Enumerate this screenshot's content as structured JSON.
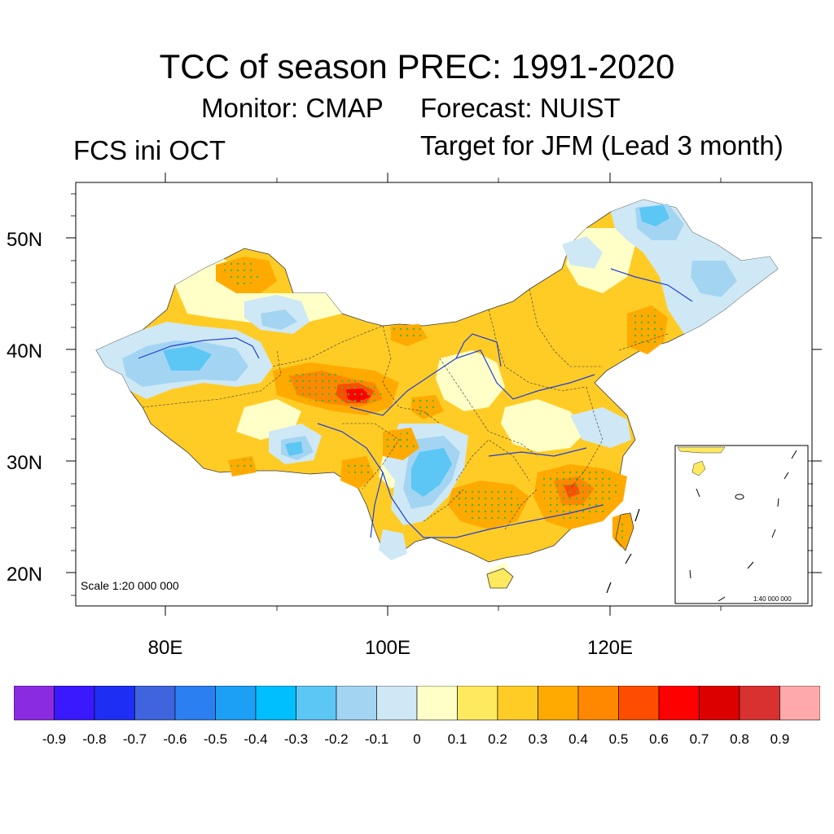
{
  "title": "TCC of season PREC: 1991-2020",
  "monitor_label": "Monitor: CMAP",
  "forecast_label": "Forecast: NUIST",
  "left_label": "FCS ini OCT",
  "right_label": "Target for JFM (Lead 3 month)",
  "latitude_labels": [
    "50N",
    "40N",
    "30N",
    "20N"
  ],
  "longitude_labels": [
    "80E",
    "100E",
    "120E"
  ],
  "scale_main": "Scale 1:20 000 000",
  "scale_inset": "1:40 000 000",
  "colorbar": {
    "colors": [
      "#8a2be2",
      "#3a19ff",
      "#1f2ef5",
      "#3f64dd",
      "#2c7ff0",
      "#1ba0f5",
      "#00bfff",
      "#5cc6f5",
      "#a3d5f2",
      "#cfe8f6",
      "#ffffc8",
      "#ffe95e",
      "#ffcc26",
      "#ffaa00",
      "#ff8800",
      "#ff4d00",
      "#ff0000",
      "#dc0000",
      "#d93030",
      "#ffaaaa"
    ],
    "labels": [
      "-0.9",
      "-0.8",
      "-0.7",
      "-0.6",
      "-0.5",
      "-0.4",
      "-0.3",
      "-0.2",
      "-0.1",
      "0",
      "0.1",
      "0.2",
      "0.3",
      "0.4",
      "0.5",
      "0.6",
      "0.7",
      "0.8",
      "0.9"
    ]
  },
  "map_regions": [
    {
      "name": "northeast-negative",
      "value": -0.2
    },
    {
      "name": "xinjiang-west-negative",
      "value": -0.2
    },
    {
      "name": "qaidam-maximum",
      "value": 0.7
    },
    {
      "name": "sichuan-negative",
      "value": -0.3
    },
    {
      "name": "southeast-positive",
      "value": 0.5
    },
    {
      "name": "taiwan-positive",
      "value": 0.4
    }
  ]
}
